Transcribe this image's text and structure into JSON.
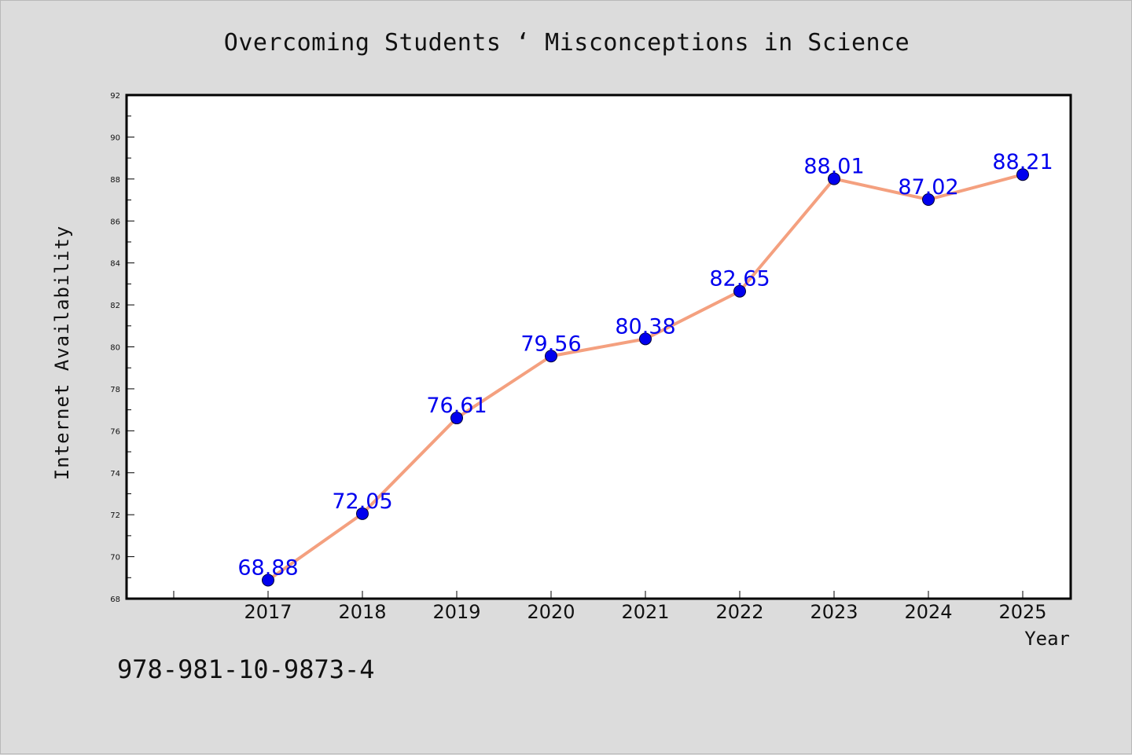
{
  "chart_data": {
    "type": "line",
    "title": "Overcoming Students ‘ Misconceptions in Science",
    "xlabel": "Year",
    "ylabel": "Internet Availability",
    "categories": [
      "2017",
      "2018",
      "2019",
      "2020",
      "2021",
      "2022",
      "2023",
      "2024",
      "2025"
    ],
    "values": [
      68.88,
      72.05,
      76.61,
      79.56,
      80.38,
      82.65,
      88.01,
      87.02,
      88.21
    ],
    "data_labels": [
      "68.88",
      "72.05",
      "76.61",
      "79.56",
      "80.38",
      "82.65",
      "88.01",
      "87.02",
      "88.21"
    ],
    "ylim": [
      68,
      92
    ],
    "yticks": [
      "68",
      "70",
      "72",
      "74",
      "76",
      "78",
      "80",
      "82",
      "84",
      "86",
      "88",
      "90",
      "92"
    ],
    "grid": false,
    "line_color": "#f4a07f",
    "marker_color": "#0000ee",
    "label_color": "#0000ee"
  },
  "footer": {
    "isbn": "978-981-10-9873-4"
  }
}
